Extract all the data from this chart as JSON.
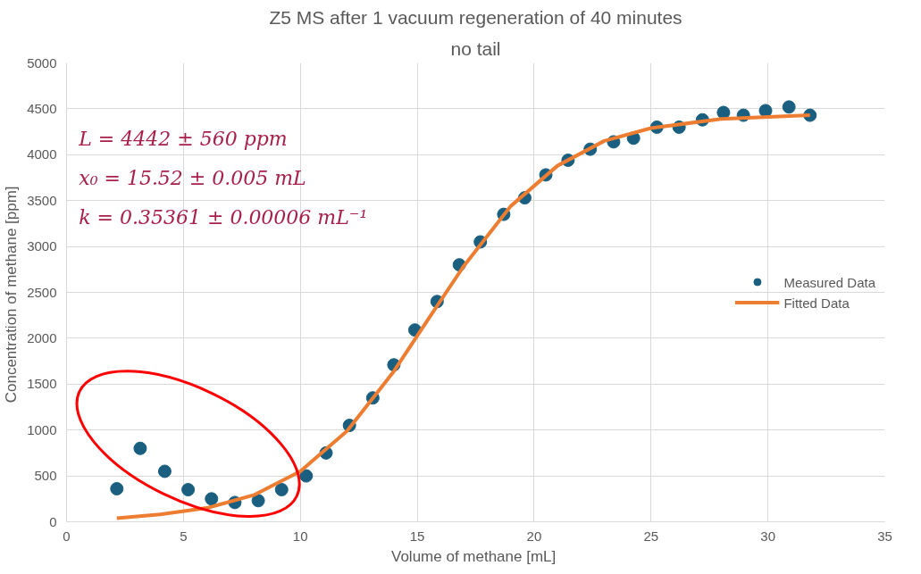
{
  "chart_data": {
    "type": "scatter",
    "title": "Z5 MS after 1 vacuum regeneration of 40 minutes",
    "subtitle": "no tail",
    "xlabel": "Volume of methane  [mL]",
    "ylabel": "Concentration of methane  [ppm]",
    "xlim": [
      0,
      35
    ],
    "xticks": [
      0,
      5,
      10,
      15,
      20,
      25,
      30,
      35
    ],
    "ylim": [
      0,
      5000
    ],
    "yticks": [
      0,
      500,
      1000,
      1500,
      2000,
      2500,
      3000,
      3500,
      4000,
      4500,
      5000
    ],
    "grid": true,
    "legend": "right",
    "annotations": [
      "L = 4442  ± 560  ppm",
      "x₀ = 15.52 ± 0.005  mL",
      "k = 0.35361 ± 0.00006  mL⁻¹"
    ],
    "series": [
      {
        "name": "Measured Data",
        "marker": "circle",
        "color": "#1a5f80",
        "x": [
          2.15,
          3.15,
          4.2,
          5.2,
          6.2,
          7.2,
          8.2,
          9.2,
          10.25,
          11.1,
          12.1,
          13.1,
          14.0,
          14.9,
          15.85,
          16.8,
          17.7,
          18.7,
          19.6,
          20.5,
          21.45,
          22.4,
          23.4,
          24.25,
          25.25,
          26.2,
          27.2,
          28.1,
          28.95,
          29.9,
          30.9,
          31.8
        ],
        "values": [
          360,
          800,
          550,
          350,
          250,
          210,
          230,
          350,
          500,
          750,
          1050,
          1350,
          1710,
          2090,
          2400,
          2800,
          3050,
          3350,
          3530,
          3780,
          3940,
          4060,
          4140,
          4180,
          4300,
          4300,
          4380,
          4460,
          4430,
          4480,
          4520,
          4430
        ]
      },
      {
        "name": "Fitted Data",
        "type": "line",
        "color": "#ed7d31",
        "marker": "none",
        "x": [
          2.15,
          4,
          6,
          8,
          10,
          12,
          14,
          15.5,
          17,
          19,
          21,
          23,
          25,
          28,
          31.8
        ],
        "values": [
          40,
          80,
          150,
          290,
          550,
          990,
          1640,
          2220,
          2790,
          3440,
          3880,
          4150,
          4290,
          4390,
          4430
        ]
      }
    ]
  }
}
